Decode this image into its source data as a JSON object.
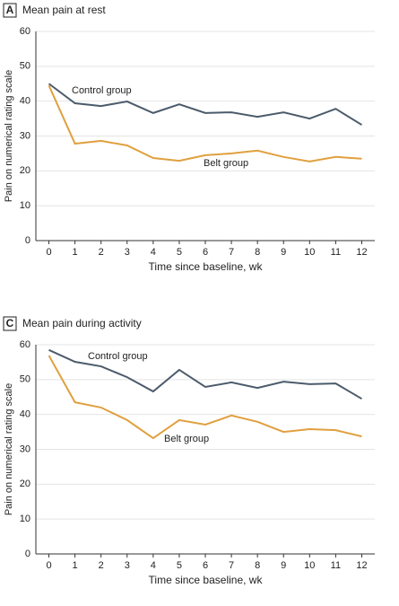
{
  "chart_data": [
    {
      "type": "line",
      "panel": "A",
      "title": "Mean pain at rest",
      "x_label": "Time since baseline, wk",
      "y_label": "Pain on numerical rating scale",
      "x": [
        0,
        1,
        2,
        3,
        4,
        5,
        6,
        7,
        8,
        9,
        10,
        11,
        12
      ],
      "series": [
        {
          "name": "Control group",
          "color": "#4b5b6b",
          "values": [
            45,
            39.4,
            38.6,
            39.9,
            36.6,
            39.1,
            36.6,
            36.8,
            35.5,
            36.8,
            35,
            37.8,
            33.2
          ]
        },
        {
          "name": "Belt group",
          "color": "#e0a03e",
          "values": [
            44.5,
            27.8,
            28.6,
            27.3,
            23.7,
            22.9,
            24.5,
            25,
            25.8,
            24,
            22.7,
            24,
            23.5
          ]
        }
      ],
      "xlim": [
        -0.5,
        12.5
      ],
      "xticks": [
        0,
        1,
        2,
        3,
        4,
        5,
        6,
        7,
        8,
        9,
        10,
        11,
        12
      ],
      "ylim": [
        0,
        60
      ],
      "yticks": [
        0,
        10,
        20,
        30,
        40,
        50,
        60
      ],
      "grid": true
    },
    {
      "type": "line",
      "panel": "C",
      "title": "Mean pain during activity",
      "x_label": "Time since baseline, wk",
      "y_label": "Pain on numerical rating scale",
      "x": [
        0,
        1,
        2,
        3,
        4,
        5,
        6,
        7,
        8,
        9,
        10,
        11,
        12
      ],
      "series": [
        {
          "name": "Control group",
          "color": "#4b5b6b",
          "values": [
            58.5,
            55.1,
            53.8,
            50.7,
            46.6,
            52.8,
            47.9,
            49.2,
            47.6,
            49.4,
            48.7,
            48.9,
            44.5
          ]
        },
        {
          "name": "Belt group",
          "color": "#e0a03e",
          "values": [
            56.9,
            43.5,
            42,
            38.4,
            33.2,
            38.4,
            37.1,
            39.7,
            37.9,
            35,
            35.8,
            35.5,
            33.7
          ]
        }
      ],
      "xlim": [
        -0.5,
        12.5
      ],
      "xticks": [
        0,
        1,
        2,
        3,
        4,
        5,
        6,
        7,
        8,
        9,
        10,
        11,
        12
      ],
      "ylim": [
        0,
        60
      ],
      "yticks": [
        0,
        10,
        20,
        30,
        40,
        50,
        60
      ],
      "grid": true
    }
  ]
}
